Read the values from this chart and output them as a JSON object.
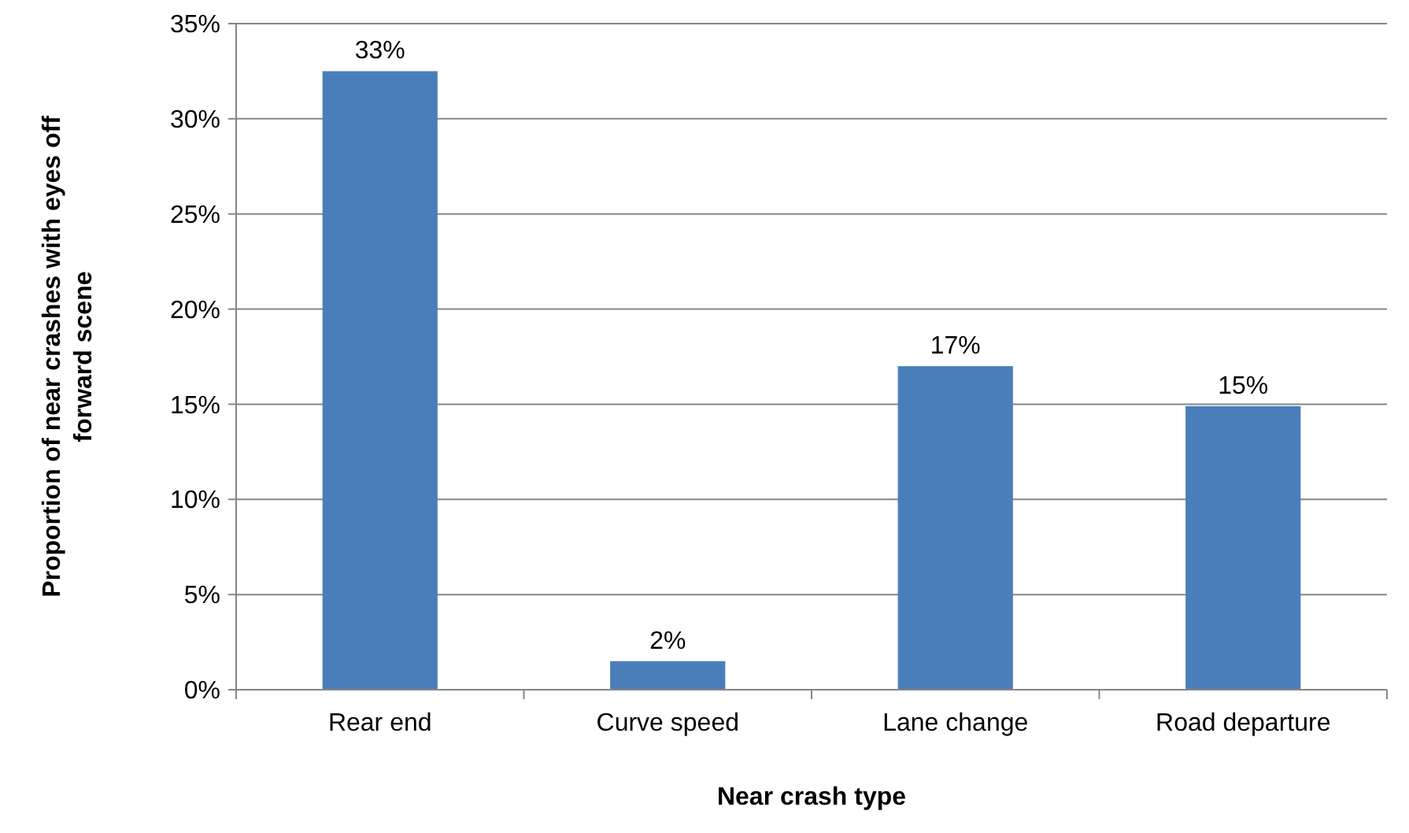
{
  "chart_data": {
    "type": "bar",
    "xlabel": "Near crash type",
    "ylabel": "Proportion of near crashes with eyes off forward scene",
    "categories": [
      "Rear end",
      "Curve speed",
      "Lane change",
      "Road departure"
    ],
    "values": [
      0.325,
      0.015,
      0.17,
      0.149
    ],
    "value_labels": [
      "33%",
      "2%",
      "17%",
      "15%"
    ],
    "color": "#4a7ebb",
    "ylim": [
      0,
      0.35
    ],
    "yticks": [
      {
        "value": 0,
        "label": "0%"
      },
      {
        "value": 0.05,
        "label": "5%"
      },
      {
        "value": 0.1,
        "label": "10%"
      },
      {
        "value": 0.15,
        "label": "15%"
      },
      {
        "value": 0.2,
        "label": "20%"
      },
      {
        "value": 0.25,
        "label": "25%"
      },
      {
        "value": 0.3,
        "label": "30%"
      },
      {
        "value": 0.35,
        "label": "35%"
      }
    ],
    "grid": "y"
  }
}
